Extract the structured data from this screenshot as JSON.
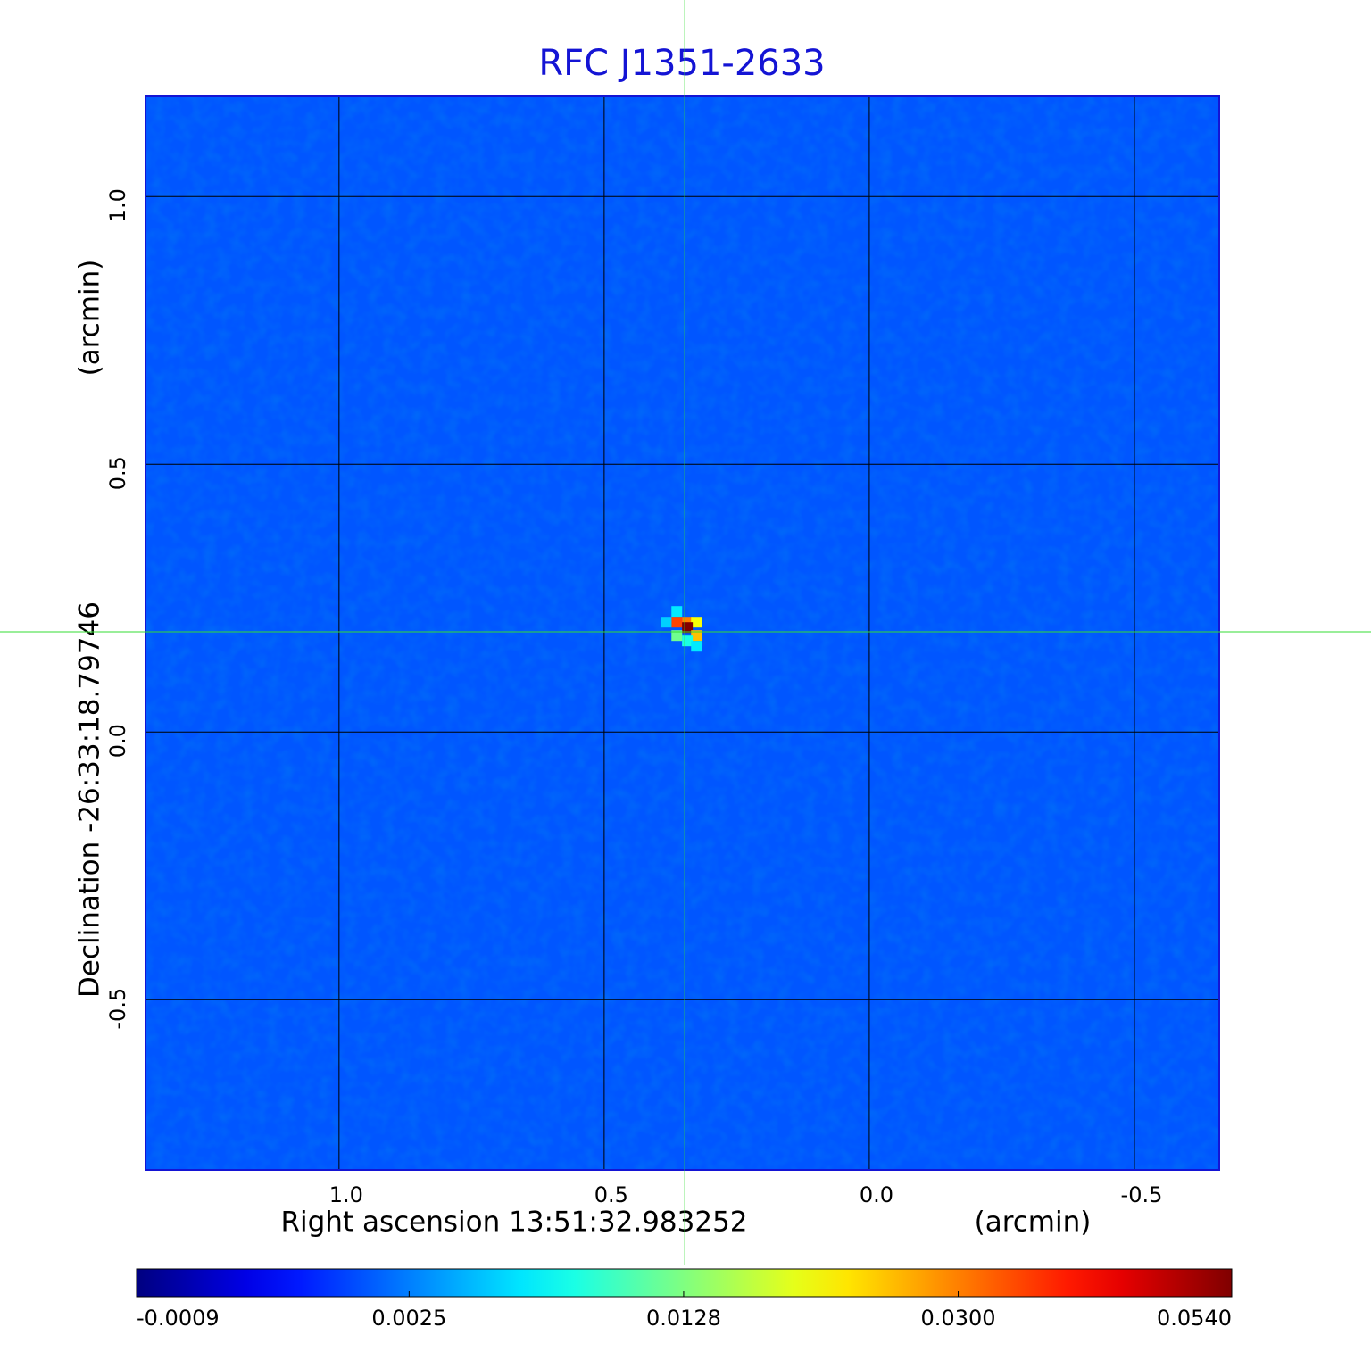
{
  "chart_data": {
    "type": "heatmap",
    "title": "RFC J1351-2633",
    "x_label": "Right ascension  13:51:32.983252",
    "x_unit": "(arcmin)",
    "y_label": "Declination  -26:33:18.79746",
    "y_unit": "(arcmin)",
    "xlim": [
      1.365,
      -0.66
    ],
    "ylim": [
      -0.818,
      1.187
    ],
    "xticks": [
      {
        "value": 1,
        "label": "1.0"
      },
      0.5,
      {
        "value": 0,
        "label": "0.0"
      },
      -0.5
    ],
    "yticks": [
      -0.5,
      {
        "value": 0,
        "label": "0.0"
      },
      0.5,
      {
        "value": 1,
        "label": "1.0"
      }
    ],
    "grid": true,
    "colormap": "jet",
    "color_scale": "sqrt",
    "clim": [
      -0.0009,
      0.054
    ],
    "cticks": [
      -0.0009,
      0.0025,
      0.0128,
      {
        "value": 0.03,
        "label": "0.0300"
      },
      {
        "value": 0.054,
        "label": "0.0540"
      }
    ],
    "background": 0.0015,
    "crosshair": {
      "x": 0.348,
      "y": 0.187
    },
    "pixels": {
      "x": [
        0.363,
        0.343,
        0.326,
        0.363,
        0.343,
        0.326,
        0.383,
        0.343,
        0.326,
        0.363
      ],
      "y": [
        0.225,
        0.205,
        0.205,
        0.205,
        0.195,
        0.18,
        0.205,
        0.17,
        0.16,
        0.18
      ],
      "values": [
        0.006,
        0.03,
        0.02,
        0.035,
        0.054,
        0.025,
        0.005,
        0.008,
        0.006,
        0.012
      ]
    }
  }
}
